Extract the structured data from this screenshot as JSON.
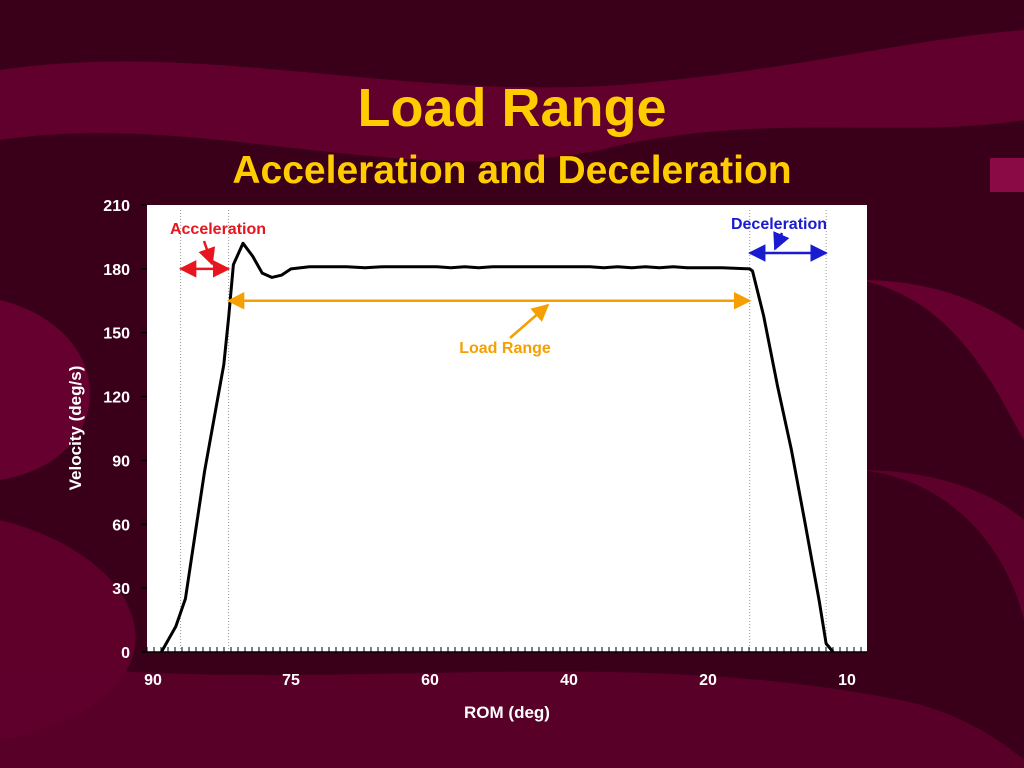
{
  "slide": {
    "title": "Load Range",
    "subtitle": "Acceleration and Deceleration"
  },
  "colors": {
    "background": "#3a0019",
    "title": "#ffcc00",
    "acceleration": "#e8141e",
    "deceleration": "#1a1ad0",
    "load_range": "#f5a000",
    "curve": "#000000"
  },
  "chart_data": {
    "type": "line",
    "xlabel": "ROM (deg)",
    "ylabel": "Velocity (deg/s)",
    "xlim": [
      90,
      10
    ],
    "ylim": [
      0,
      210
    ],
    "x_ticks": [
      90,
      75,
      60,
      40,
      20,
      10
    ],
    "y_ticks": [
      0,
      30,
      60,
      90,
      120,
      150,
      180,
      210
    ],
    "grid": false,
    "series": [
      {
        "x": [
          88.5,
          88,
          87,
          86,
          85,
          84,
          83,
          82,
          81.5,
          81,
          80,
          79,
          78,
          77,
          76,
          75,
          73,
          71,
          69,
          67,
          65,
          63,
          61,
          59,
          57,
          55,
          53,
          51,
          49,
          47,
          45,
          43,
          41,
          39,
          37,
          35,
          33,
          31,
          29,
          27,
          25,
          23,
          21,
          19,
          17,
          16.8,
          16,
          15,
          14,
          13,
          12,
          11.5,
          11
        ],
        "y": [
          0,
          4,
          12,
          25,
          55,
          85,
          110,
          135,
          157,
          182,
          192,
          186,
          178,
          176,
          177,
          180,
          181,
          181,
          181,
          180.5,
          181,
          181,
          181,
          181,
          180.5,
          181,
          180.5,
          181,
          181,
          181,
          181,
          181,
          181,
          181,
          181,
          180.5,
          181,
          180.5,
          181,
          180.5,
          181,
          180.5,
          180.5,
          180.5,
          180,
          179,
          158,
          125,
          95,
          60,
          24,
          4,
          0
        ]
      }
    ],
    "annotations": [
      {
        "label": "Acceleration",
        "from": 86.5,
        "to": 81.5,
        "y": 180
      },
      {
        "label": "Load Range",
        "from": 81.5,
        "to": 17,
        "y": 165
      },
      {
        "label": "Deceleration",
        "from": 17,
        "to": 11.5,
        "y": 187
      }
    ]
  }
}
